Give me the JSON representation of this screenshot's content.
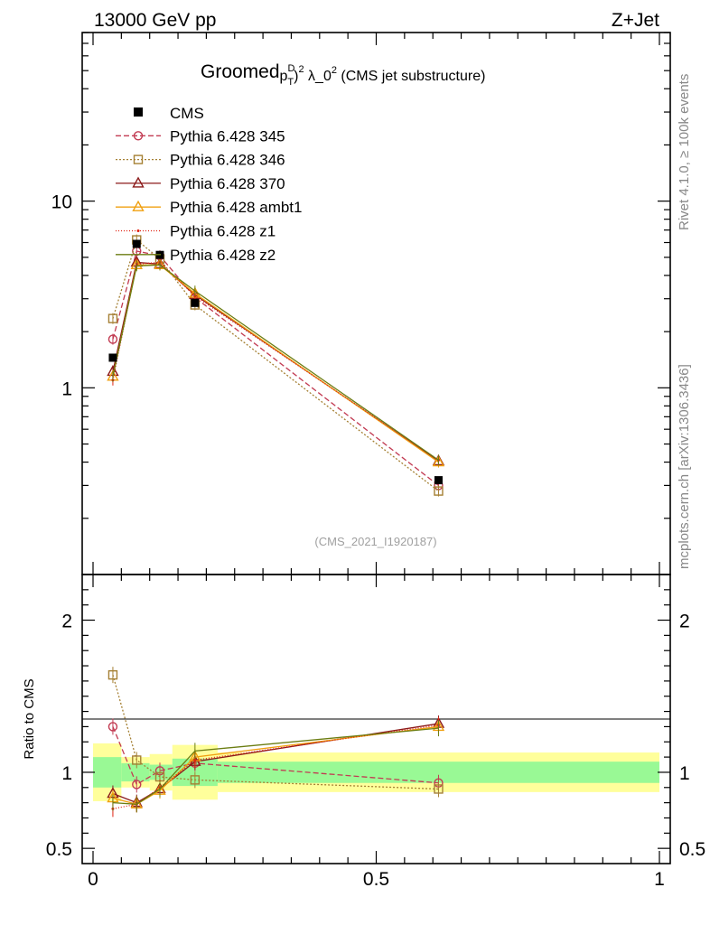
{
  "header": {
    "energy_label": "13000 GeV pp",
    "process_label": "Z+Jet"
  },
  "side": {
    "rivet_label": "Rivet 4.1.0, ≥ 100k events",
    "mcplots_label": "mcplots.cern.ch [arXiv:1306.3436]"
  },
  "chart_data": {
    "type": "line",
    "title": {
      "prefix": "Groomed",
      "p": "p",
      "sup_d": "D",
      "sub_t": "T",
      "sup_2": "2",
      "lambda": " λ_0",
      "sup_2b": "2",
      "suffix": " (CMS jet substructure)"
    },
    "analysis_id": "(CMS_2021_I1920187)",
    "xlabel": "",
    "ylabel_ratio": "Ratio to CMS",
    "xlim": [
      0,
      1
    ],
    "ylim_main": [
      0.1,
      80
    ],
    "yscale_main": "log",
    "ylim_ratio": [
      0.4,
      2.3
    ],
    "x_ticks": [
      {
        "v": 0,
        "label": "0"
      },
      {
        "v": 0.5,
        "label": "0.5"
      },
      {
        "v": 1,
        "label": "1"
      }
    ],
    "main_y_ticks": [
      {
        "v": 1,
        "label": "1"
      },
      {
        "v": 10,
        "label": "10"
      }
    ],
    "ratio_y_ticks": [
      {
        "v": 0.5,
        "label": "0.5"
      },
      {
        "v": 1,
        "label": "1"
      },
      {
        "v": 2,
        "label": "2"
      }
    ],
    "bin_edges": [
      0,
      0.05,
      0.1,
      0.14,
      0.22,
      1.0
    ],
    "x": [
      0.035,
      0.077,
      0.118,
      0.18,
      0.61
    ],
    "data": {
      "name": "CMS",
      "values": [
        1.45,
        5.9,
        5.15,
        2.85,
        0.32
      ],
      "band_inner": [
        0.1,
        0.06,
        0.05,
        0.09,
        0.07
      ],
      "band_outer": [
        0.19,
        0.1,
        0.12,
        0.18,
        0.13
      ]
    },
    "series": [
      {
        "name": "Pythia 6.428 345",
        "color": "#c23b52",
        "dash": "6,3",
        "marker": "circle-open",
        "values": [
          1.82,
          5.4,
          5.1,
          3.05,
          0.3
        ],
        "ratio": [
          1.3,
          0.92,
          1.01,
          1.06,
          0.93
        ]
      },
      {
        "name": "Pythia 6.428 346",
        "color": "#a58034",
        "dash": "2,2",
        "marker": "square-open",
        "values": [
          2.35,
          6.2,
          4.9,
          2.78,
          0.28
        ],
        "ratio": [
          1.64,
          1.08,
          0.97,
          0.95,
          0.89
        ]
      },
      {
        "name": "Pythia 6.428 370",
        "color": "#8b1a1a",
        "dash": "",
        "marker": "triangle-open",
        "values": [
          1.22,
          4.7,
          4.6,
          3.15,
          0.405
        ],
        "ratio": [
          0.86,
          0.8,
          0.89,
          1.07,
          1.32
        ]
      },
      {
        "name": "Pythia 6.428 ambt1",
        "color": "#f0a010",
        "dash": "",
        "marker": "triangle-open",
        "values": [
          1.15,
          4.55,
          4.55,
          3.2,
          0.4
        ],
        "ratio": [
          0.83,
          0.79,
          0.88,
          1.1,
          1.3
        ]
      },
      {
        "name": "Pythia 6.428 z1",
        "color": "#e02010",
        "dash": "1,2",
        "marker": "dot",
        "values": [
          1.1,
          4.6,
          4.7,
          3.1,
          0.41
        ],
        "ratio": [
          0.76,
          0.79,
          0.9,
          1.08,
          1.31
        ]
      },
      {
        "name": "Pythia 6.428 z2",
        "color": "#6b7d12",
        "dash": "",
        "marker": "none",
        "values": [
          1.15,
          4.5,
          4.55,
          3.3,
          0.41
        ],
        "ratio": [
          0.8,
          0.79,
          0.89,
          1.14,
          1.29
        ]
      }
    ],
    "colors": {
      "band_inner": "#99f995",
      "band_outer": "#ffff9b",
      "data_marker": "#000000"
    }
  }
}
